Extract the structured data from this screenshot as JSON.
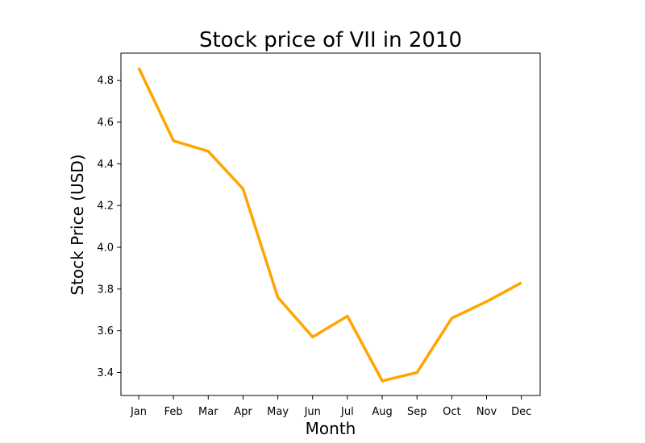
{
  "chart_data": {
    "type": "line",
    "title": "Stock price of VII in 2010",
    "xlabel": "Month",
    "ylabel": "Stock Price (USD)",
    "categories": [
      "Jan",
      "Feb",
      "Mar",
      "Apr",
      "May",
      "Jun",
      "Jul",
      "Aug",
      "Sep",
      "Oct",
      "Nov",
      "Dec"
    ],
    "series": [
      {
        "values": [
          4.86,
          4.51,
          4.46,
          4.28,
          3.76,
          3.57,
          3.67,
          3.36,
          3.4,
          3.66,
          3.74,
          3.83
        ],
        "color": "#ffa500"
      }
    ],
    "ylim": [
      3.29,
      4.93
    ],
    "yticks": [
      "3.4",
      "3.6",
      "3.8",
      "4.0",
      "4.2",
      "4.4",
      "4.6",
      "4.8"
    ],
    "grid": false,
    "legend": "none"
  }
}
